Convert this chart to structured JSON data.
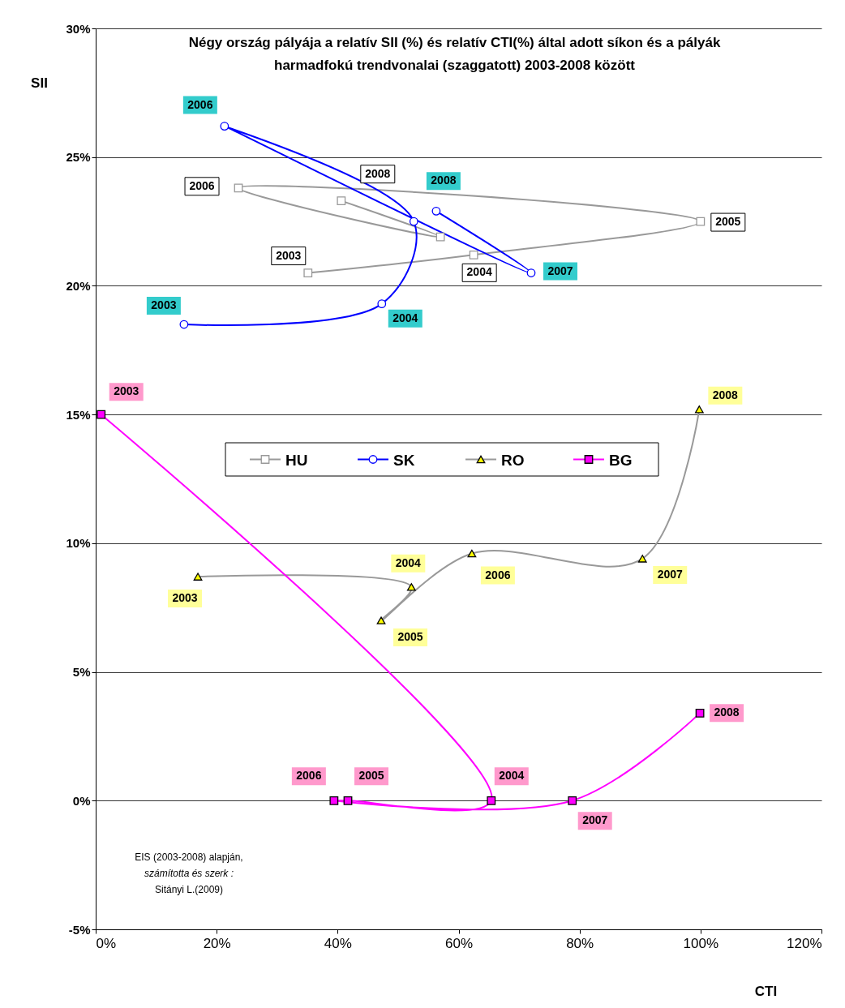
{
  "chart_data": {
    "type": "line",
    "title": "Négy ország pályája a relatív SII (%) és relatív CTI(%) által adott síkon és a pályák\nharmadfokú trendvonalai (szaggatott) 2003-2008 között",
    "xlabel": "CTI",
    "ylabel": "SII",
    "xlim": [
      0,
      120
    ],
    "xticks": [
      {
        "value": 0,
        "label": "0%"
      },
      {
        "value": 20,
        "label": "20%"
      },
      {
        "value": 40,
        "label": "40%"
      },
      {
        "value": 60,
        "label": "60%"
      },
      {
        "value": 80,
        "label": "80%"
      },
      {
        "value": 100,
        "label": "100%"
      },
      {
        "value": 120,
        "label": "120%"
      }
    ],
    "ylim": [
      -5,
      30
    ],
    "yticks": [
      {
        "value": -5,
        "label": "-5%"
      },
      {
        "value": 0,
        "label": "0%"
      },
      {
        "value": 5,
        "label": "5%"
      },
      {
        "value": 10,
        "label": "10%"
      },
      {
        "value": 15,
        "label": "15%"
      },
      {
        "value": 20,
        "label": "20%"
      },
      {
        "value": 25,
        "label": "25%"
      },
      {
        "value": 30,
        "label": "30%"
      }
    ],
    "grid": "y",
    "legend": "center",
    "series": [
      {
        "name": "HU",
        "color": "#999999",
        "marker": "square",
        "x": [
          35.1,
          62.5,
          100.0,
          23.6,
          57.0,
          40.6
        ],
        "values": [
          20.5,
          21.2,
          22.5,
          23.8,
          21.9,
          23.3
        ]
      },
      {
        "name": "SK",
        "color": "#0000ff",
        "marker": "circle",
        "x": [
          14.6,
          47.3,
          52.6,
          21.3,
          72.0,
          56.3
        ],
        "values": [
          18.5,
          19.3,
          22.5,
          26.2,
          20.5,
          22.9
        ]
      },
      {
        "name": "RO",
        "color": "#999999",
        "marker": "triangle",
        "x": [
          16.9,
          52.2,
          47.2,
          62.2,
          90.4,
          99.8
        ],
        "values": [
          8.7,
          8.3,
          7.0,
          9.6,
          9.4,
          15.2
        ]
      },
      {
        "name": "BG",
        "color": "#ff00ff",
        "marker": "square",
        "x": [
          0.9,
          65.4,
          41.7,
          39.4,
          78.8,
          99.9
        ],
        "values": [
          15.0,
          0,
          0,
          0,
          0,
          3.4
        ]
      }
    ],
    "annotations": [
      "EIS (2003-2008) alapján,",
      "számította és szerk :",
      "Sitányi L.(2009)",
      {
        "text": "2003",
        "x": 35.1,
        "y": 20.5
      },
      {
        "text": "2004",
        "x": 62.5,
        "y": 21.2
      },
      {
        "text": "2005",
        "x": 100.0,
        "y": 22.5
      },
      {
        "text": "2006",
        "x": 23.6,
        "y": 23.8
      },
      {
        "text": "2008",
        "x": 40.6,
        "y": 23.3
      },
      {
        "text": "2003",
        "x": 14.6,
        "y": 18.5
      },
      {
        "text": "2004",
        "x": 47.3,
        "y": 19.3
      },
      {
        "text": "2006",
        "x": 21.3,
        "y": 26.2
      },
      {
        "text": "2007",
        "x": 72.0,
        "y": 20.5
      },
      {
        "text": "2008",
        "x": 56.3,
        "y": 22.9
      },
      {
        "text": "2003",
        "x": 16.9,
        "y": 8.7
      },
      {
        "text": "2004",
        "x": 52.2,
        "y": 8.3
      },
      {
        "text": "2005",
        "x": 47.2,
        "y": 7.0
      },
      {
        "text": "2006",
        "x": 62.2,
        "y": 9.6
      },
      {
        "text": "2007",
        "x": 90.4,
        "y": 9.4
      },
      {
        "text": "2008",
        "x": 99.8,
        "y": 15.2
      },
      {
        "text": "2003",
        "x": 0.9,
        "y": 15.0
      },
      {
        "text": "2004",
        "x": 65.4,
        "y": 0
      },
      {
        "text": "2005",
        "x": 41.7,
        "y": 0
      },
      {
        "text": "2006",
        "x": 39.4,
        "y": 0
      },
      {
        "text": "2007",
        "x": 78.8,
        "y": 0
      },
      {
        "text": "2008",
        "x": 99.9,
        "y": 3.4
      }
    ]
  }
}
